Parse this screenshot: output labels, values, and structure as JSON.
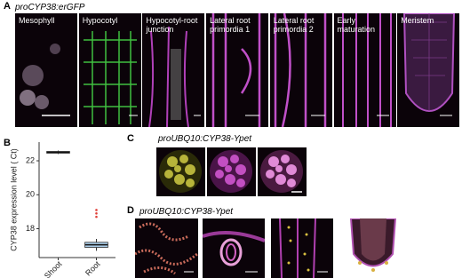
{
  "panel_a": {
    "label": "A",
    "construct": "proCYP38:erGFP",
    "images": [
      "Mesophyll",
      "Hypocotyl",
      "Hypocotyl-root junction",
      "Lateral root primordia 1",
      "Lateral root primordia 2",
      "Early maturation",
      "Meristem"
    ]
  },
  "panel_b": {
    "label": "B"
  },
  "panel_c": {
    "label": "C",
    "construct": "proUBQ10:CYP38-Ypet"
  },
  "panel_d": {
    "label": "D",
    "construct": "proUBQ10:CYP38-Ypet"
  },
  "chart_data": {
    "type": "box",
    "y_label": "CYP38 expression level ( Ct)",
    "categories": [
      "Shoot",
      "Root"
    ],
    "boxes": [
      {
        "min": 22.4,
        "q1": 22.45,
        "median": 22.5,
        "q3": 22.55,
        "max": 22.6,
        "outliers": []
      },
      {
        "min": 16.7,
        "q1": 16.9,
        "median": 17.05,
        "q3": 17.2,
        "max": 17.4,
        "outliers": [
          18.7,
          18.9,
          19.1
        ]
      }
    ],
    "colors": [
      "#444444",
      "#a9cbe6"
    ],
    "outlier_color": "#e0413a",
    "ylim": [
      16.3,
      23.1
    ],
    "yticks": [
      18,
      20,
      22
    ]
  }
}
